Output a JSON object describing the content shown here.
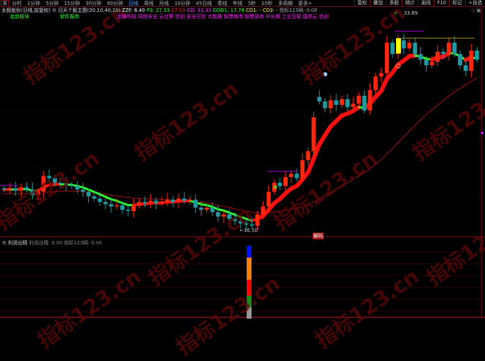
{
  "toolbar": {
    "menu_icon": "menu-icon",
    "periods": [
      "分时",
      "1分钟",
      "5分钟",
      "15分钟",
      "30分钟",
      "60分钟",
      "日线",
      "周线",
      "月线",
      "10分钟",
      "45日线",
      "季线",
      "年线",
      "5秒",
      "15秒",
      "多周期",
      "更多>"
    ],
    "active": "日线",
    "right": [
      "复权",
      "叠加",
      "多股",
      "统计",
      "画线",
      "F10",
      "标记",
      "+自选"
    ]
  },
  "header": {
    "stock": "太极股份(日线,前复权)",
    "indicator": "日天个股主图(20,10,40,20)",
    "zzf": "ZZF: 6.40",
    "p3": "P3: 27.53",
    "v2": "27.53",
    "gd": "GD: 33.33",
    "ddd1": "DDD1: 17.78",
    "cd1": "CD1: -",
    "cd3": "CD3: -",
    "zb": "指标123网: 0.00"
  },
  "tags": {
    "region": "北京板块",
    "industry": "软件服务",
    "concepts": "金融科技 网络安全 云计算 信创 安全可控 大数据 智慧城市 智慧政务 中长期 工业互联 国资云 信创"
  },
  "annotations": {
    "high": "33.89",
    "low": "←16.50",
    "sell_label": "解码"
  },
  "sub": {
    "title": "利润出精",
    "v1": "利润出精: 0.00",
    "v2": "指标123网: 0.00"
  },
  "watermark": "指标123.cn",
  "colors": {
    "up": "#ff2a10",
    "down": "#1e9aa0",
    "ribbon_up": "#ff1010",
    "ribbon_down": "#30ff30",
    "ma_long": "#a01010",
    "grid": "#5a0d0d"
  },
  "candles": {
    "open": [
      20.1,
      20.0,
      20.1,
      19.9,
      20.2,
      20.0,
      19.5,
      19.8,
      21.2,
      21.0,
      20.6,
      20.5,
      20.4,
      20.3,
      20.0,
      19.8,
      19.4,
      19.2,
      18.9,
      18.7,
      18.5,
      18.6,
      18.2,
      18.1,
      18.6,
      18.9,
      18.8,
      19.0,
      18.8,
      18.9,
      19.1,
      18.9,
      19.2,
      19.0,
      19.1,
      18.4,
      18.2,
      18.4,
      18.0,
      17.6,
      17.8,
      17.4,
      17.2,
      17.0,
      16.9,
      16.8,
      17.8,
      18.5,
      19.8,
      20.6,
      20.3,
      21.1,
      21.4,
      21.0,
      22.6,
      23.4,
      28.2,
      27.8,
      27.2,
      27.9,
      27.5,
      28.0,
      27.3,
      27.6,
      28.3,
      27.0,
      28.8,
      30.0,
      30.3,
      33.0,
      32.0,
      33.2,
      32.5,
      33.0,
      32.0,
      31.5,
      31.0,
      31.3,
      32.2,
      32.0,
      33.0,
      32.0,
      31.0,
      30.5,
      32.3
    ],
    "close": [
      20.0,
      20.1,
      19.9,
      20.2,
      20.0,
      19.5,
      19.8,
      21.2,
      21.0,
      20.6,
      20.5,
      20.4,
      20.3,
      20.0,
      19.8,
      19.4,
      19.2,
      18.9,
      18.7,
      18.5,
      18.6,
      18.2,
      18.1,
      18.6,
      18.9,
      18.8,
      19.0,
      18.8,
      18.9,
      19.1,
      18.9,
      19.2,
      19.0,
      19.1,
      18.4,
      18.2,
      18.4,
      18.0,
      17.6,
      17.8,
      17.4,
      17.2,
      17.0,
      16.9,
      16.8,
      17.8,
      18.5,
      19.8,
      20.6,
      20.3,
      21.1,
      21.4,
      21.0,
      22.6,
      23.4,
      26.4,
      27.8,
      27.2,
      27.9,
      27.5,
      28.0,
      27.3,
      27.6,
      28.3,
      27.0,
      28.8,
      30.0,
      30.3,
      33.0,
      32.0,
      33.2,
      32.5,
      33.0,
      32.0,
      31.5,
      31.0,
      31.3,
      32.2,
      32.0,
      33.0,
      32.0,
      31.0,
      30.5,
      32.3,
      31.5
    ]
  }
}
